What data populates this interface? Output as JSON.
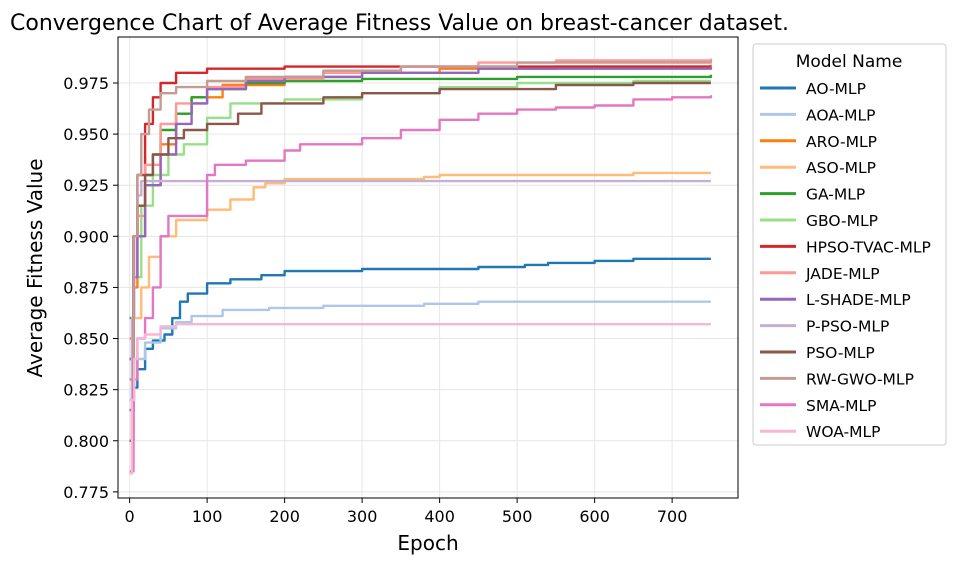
{
  "chart_data": {
    "type": "line",
    "title": "Convergence Chart of Average Fitness Value on breast-cancer dataset.",
    "xlabel": "Epoch",
    "ylabel": "Average Fitness Value",
    "xlim": [
      -15,
      785
    ],
    "ylim": [
      0.772,
      0.9975
    ],
    "xticks": [
      0,
      100,
      200,
      300,
      400,
      500,
      600,
      700
    ],
    "yticks": [
      0.775,
      0.8,
      0.825,
      0.85,
      0.875,
      0.9,
      0.925,
      0.95,
      0.975
    ],
    "grid": true,
    "legend": {
      "title": "Model Name",
      "placement": "outside-right"
    },
    "series": [
      {
        "name": "AO-MLP",
        "color": "#1f77b4",
        "points": [
          [
            0,
            0.815
          ],
          [
            5,
            0.826
          ],
          [
            10,
            0.835
          ],
          [
            20,
            0.845
          ],
          [
            30,
            0.849
          ],
          [
            45,
            0.852
          ],
          [
            55,
            0.86
          ],
          [
            65,
            0.868
          ],
          [
            75,
            0.872
          ],
          [
            100,
            0.877
          ],
          [
            130,
            0.879
          ],
          [
            170,
            0.881
          ],
          [
            200,
            0.883
          ],
          [
            300,
            0.884
          ],
          [
            450,
            0.885
          ],
          [
            510,
            0.886
          ],
          [
            540,
            0.887
          ],
          [
            600,
            0.888
          ],
          [
            650,
            0.889
          ],
          [
            750,
            0.889
          ]
        ]
      },
      {
        "name": "AOA-MLP",
        "color": "#aec7e8",
        "points": [
          [
            0,
            0.82
          ],
          [
            5,
            0.83
          ],
          [
            10,
            0.84
          ],
          [
            20,
            0.848
          ],
          [
            40,
            0.855
          ],
          [
            60,
            0.858
          ],
          [
            80,
            0.861
          ],
          [
            120,
            0.864
          ],
          [
            180,
            0.865
          ],
          [
            250,
            0.866
          ],
          [
            380,
            0.867
          ],
          [
            450,
            0.868
          ],
          [
            750,
            0.868
          ]
        ]
      },
      {
        "name": "ARO-MLP",
        "color": "#ff7f0e",
        "points": [
          [
            0,
            0.85
          ],
          [
            5,
            0.875
          ],
          [
            10,
            0.9
          ],
          [
            20,
            0.925
          ],
          [
            40,
            0.945
          ],
          [
            60,
            0.96
          ],
          [
            80,
            0.968
          ],
          [
            120,
            0.974
          ],
          [
            200,
            0.978
          ],
          [
            300,
            0.98
          ],
          [
            400,
            0.982
          ],
          [
            550,
            0.983
          ],
          [
            750,
            0.984
          ]
        ]
      },
      {
        "name": "ASO-MLP",
        "color": "#ffbb78",
        "points": [
          [
            0,
            0.84
          ],
          [
            5,
            0.86
          ],
          [
            15,
            0.875
          ],
          [
            25,
            0.89
          ],
          [
            40,
            0.9
          ],
          [
            60,
            0.908
          ],
          [
            100,
            0.913
          ],
          [
            130,
            0.918
          ],
          [
            160,
            0.924
          ],
          [
            175,
            0.926
          ],
          [
            200,
            0.928
          ],
          [
            380,
            0.929
          ],
          [
            400,
            0.93
          ],
          [
            650,
            0.931
          ],
          [
            750,
            0.931
          ]
        ]
      },
      {
        "name": "GA-MLP",
        "color": "#2ca02c",
        "points": [
          [
            0,
            0.86
          ],
          [
            5,
            0.9
          ],
          [
            10,
            0.915
          ],
          [
            20,
            0.93
          ],
          [
            30,
            0.94
          ],
          [
            40,
            0.952
          ],
          [
            60,
            0.96
          ],
          [
            80,
            0.968
          ],
          [
            100,
            0.972
          ],
          [
            150,
            0.975
          ],
          [
            200,
            0.976
          ],
          [
            300,
            0.977
          ],
          [
            500,
            0.978
          ],
          [
            750,
            0.979
          ]
        ]
      },
      {
        "name": "GBO-MLP",
        "color": "#98df8a",
        "points": [
          [
            0,
            0.83
          ],
          [
            5,
            0.88
          ],
          [
            15,
            0.915
          ],
          [
            30,
            0.93
          ],
          [
            50,
            0.94
          ],
          [
            70,
            0.945
          ],
          [
            100,
            0.958
          ],
          [
            130,
            0.965
          ],
          [
            200,
            0.967
          ],
          [
            300,
            0.97
          ],
          [
            400,
            0.973
          ],
          [
            500,
            0.975
          ],
          [
            650,
            0.976
          ],
          [
            750,
            0.976
          ]
        ]
      },
      {
        "name": "HPSO-TVAC-MLP",
        "color": "#d62728",
        "points": [
          [
            0,
            0.84
          ],
          [
            5,
            0.9
          ],
          [
            10,
            0.93
          ],
          [
            20,
            0.955
          ],
          [
            30,
            0.968
          ],
          [
            40,
            0.975
          ],
          [
            60,
            0.98
          ],
          [
            100,
            0.982
          ],
          [
            200,
            0.983
          ],
          [
            350,
            0.983
          ],
          [
            750,
            0.983
          ]
        ]
      },
      {
        "name": "JADE-MLP",
        "color": "#ff9896",
        "points": [
          [
            0,
            0.83
          ],
          [
            5,
            0.88
          ],
          [
            10,
            0.91
          ],
          [
            20,
            0.935
          ],
          [
            40,
            0.955
          ],
          [
            60,
            0.965
          ],
          [
            100,
            0.973
          ],
          [
            150,
            0.977
          ],
          [
            250,
            0.98
          ],
          [
            350,
            0.983
          ],
          [
            450,
            0.985
          ],
          [
            550,
            0.986
          ],
          [
            750,
            0.987
          ]
        ]
      },
      {
        "name": "L-SHADE-MLP",
        "color": "#9467bd",
        "points": [
          [
            0,
            0.84
          ],
          [
            5,
            0.88
          ],
          [
            10,
            0.9
          ],
          [
            20,
            0.925
          ],
          [
            40,
            0.94
          ],
          [
            60,
            0.955
          ],
          [
            80,
            0.965
          ],
          [
            100,
            0.972
          ],
          [
            150,
            0.976
          ],
          [
            200,
            0.978
          ],
          [
            300,
            0.98
          ],
          [
            450,
            0.982
          ],
          [
            750,
            0.983
          ]
        ]
      },
      {
        "name": "P-PSO-MLP",
        "color": "#c5b0d5",
        "points": [
          [
            0,
            0.8
          ],
          [
            3,
            0.86
          ],
          [
            6,
            0.9
          ],
          [
            10,
            0.92
          ],
          [
            15,
            0.927
          ],
          [
            750,
            0.927
          ]
        ]
      },
      {
        "name": "PSO-MLP",
        "color": "#8c564b",
        "points": [
          [
            0,
            0.8
          ],
          [
            5,
            0.9
          ],
          [
            10,
            0.915
          ],
          [
            20,
            0.93
          ],
          [
            30,
            0.94
          ],
          [
            50,
            0.948
          ],
          [
            70,
            0.952
          ],
          [
            100,
            0.955
          ],
          [
            140,
            0.96
          ],
          [
            170,
            0.965
          ],
          [
            250,
            0.968
          ],
          [
            300,
            0.97
          ],
          [
            400,
            0.972
          ],
          [
            550,
            0.974
          ],
          [
            650,
            0.975
          ],
          [
            750,
            0.975
          ]
        ]
      },
      {
        "name": "RW-GWO-MLP",
        "color": "#c49c94",
        "points": [
          [
            0,
            0.83
          ],
          [
            5,
            0.9
          ],
          [
            10,
            0.93
          ],
          [
            15,
            0.95
          ],
          [
            25,
            0.962
          ],
          [
            40,
            0.97
          ],
          [
            60,
            0.973
          ],
          [
            100,
            0.976
          ],
          [
            150,
            0.978
          ],
          [
            250,
            0.981
          ],
          [
            350,
            0.983
          ],
          [
            500,
            0.985
          ],
          [
            750,
            0.986
          ]
        ]
      },
      {
        "name": "SMA-MLP",
        "color": "#e377c2",
        "points": [
          [
            0,
            0.785
          ],
          [
            5,
            0.83
          ],
          [
            10,
            0.85
          ],
          [
            20,
            0.86
          ],
          [
            30,
            0.875
          ],
          [
            40,
            0.9
          ],
          [
            50,
            0.91
          ],
          [
            100,
            0.93
          ],
          [
            110,
            0.935
          ],
          [
            150,
            0.937
          ],
          [
            200,
            0.942
          ],
          [
            220,
            0.945
          ],
          [
            300,
            0.948
          ],
          [
            350,
            0.952
          ],
          [
            400,
            0.957
          ],
          [
            450,
            0.96
          ],
          [
            500,
            0.962
          ],
          [
            550,
            0.963
          ],
          [
            600,
            0.964
          ],
          [
            650,
            0.967
          ],
          [
            700,
            0.968
          ],
          [
            750,
            0.969
          ]
        ]
      },
      {
        "name": "WOA-MLP",
        "color": "#f7b6d2",
        "points": [
          [
            0,
            0.784
          ],
          [
            3,
            0.82
          ],
          [
            6,
            0.84
          ],
          [
            10,
            0.85
          ],
          [
            20,
            0.852
          ],
          [
            40,
            0.856
          ],
          [
            60,
            0.857
          ],
          [
            750,
            0.857
          ]
        ]
      }
    ]
  }
}
